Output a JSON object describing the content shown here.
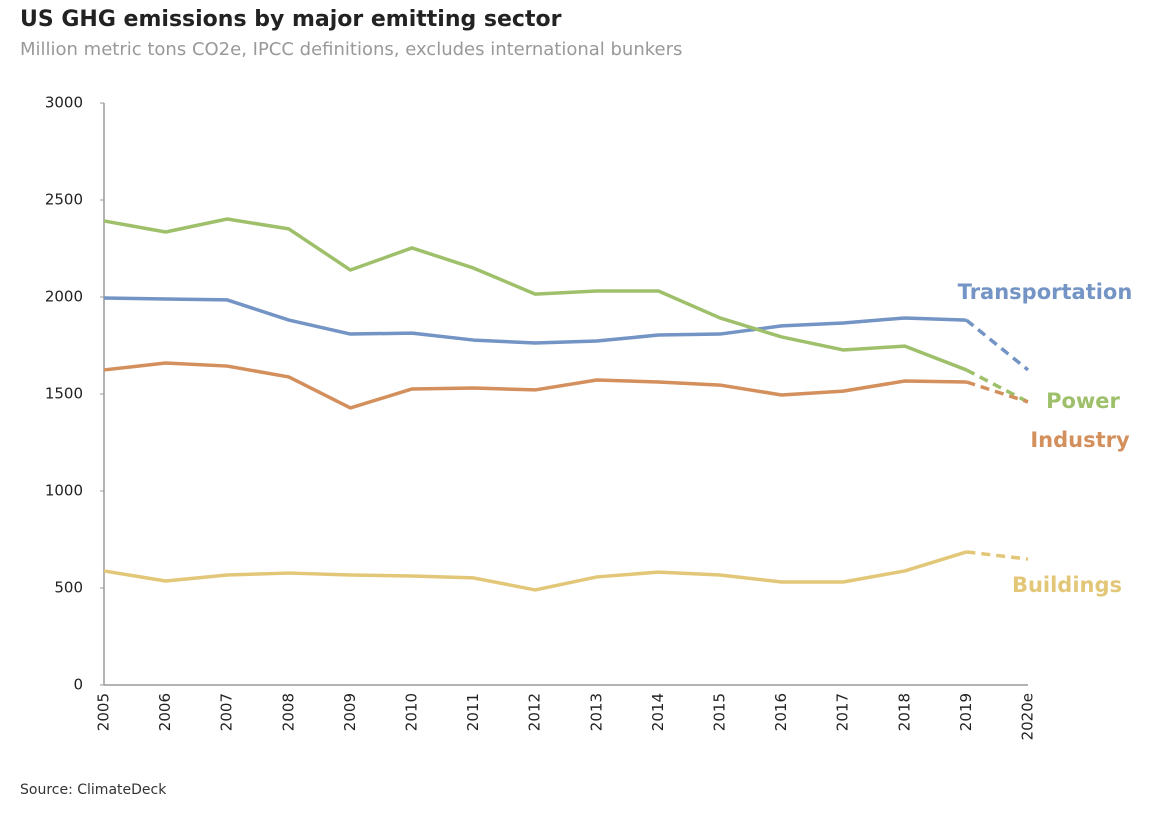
{
  "chart_data": {
    "type": "line",
    "title": "US GHG emissions by major emitting sector",
    "subtitle": "Million metric tons CO2e, IPCC definitions, excludes international bunkers",
    "source": "Source: ClimateDeck",
    "categories": [
      "2005",
      "2006",
      "2007",
      "2008",
      "2009",
      "2010",
      "2011",
      "2012",
      "2013",
      "2014",
      "2015",
      "2016",
      "2017",
      "2018",
      "2019",
      "2020e"
    ],
    "ylim": [
      0,
      3000
    ],
    "yticks": [
      0,
      500,
      1000,
      1500,
      2000,
      2500,
      3000
    ],
    "grid": false,
    "dashed_last_segment": true,
    "series": [
      {
        "name": "Transportation",
        "color": "#7394c4",
        "values": [
          1995,
          1990,
          1985,
          1881,
          1809,
          1814,
          1778,
          1763,
          1773,
          1804,
          1809,
          1851,
          1866,
          1892,
          1881,
          1624
        ]
      },
      {
        "name": "Power",
        "color": "#9fc06a",
        "values": [
          2392,
          2335,
          2402,
          2351,
          2139,
          2253,
          2149,
          2015,
          2031,
          2031,
          1892,
          1794,
          1727,
          1747,
          1624,
          1459
        ]
      },
      {
        "name": "Industry",
        "color": "#d38f5c",
        "values": [
          1624,
          1660,
          1644,
          1588,
          1428,
          1526,
          1531,
          1521,
          1572,
          1562,
          1546,
          1495,
          1515,
          1567,
          1562,
          1459
        ]
      },
      {
        "name": "Buildings",
        "color": "#e3c779",
        "values": [
          588,
          536,
          567,
          577,
          567,
          562,
          552,
          490,
          557,
          582,
          567,
          531,
          531,
          588,
          686,
          649
        ]
      }
    ]
  }
}
